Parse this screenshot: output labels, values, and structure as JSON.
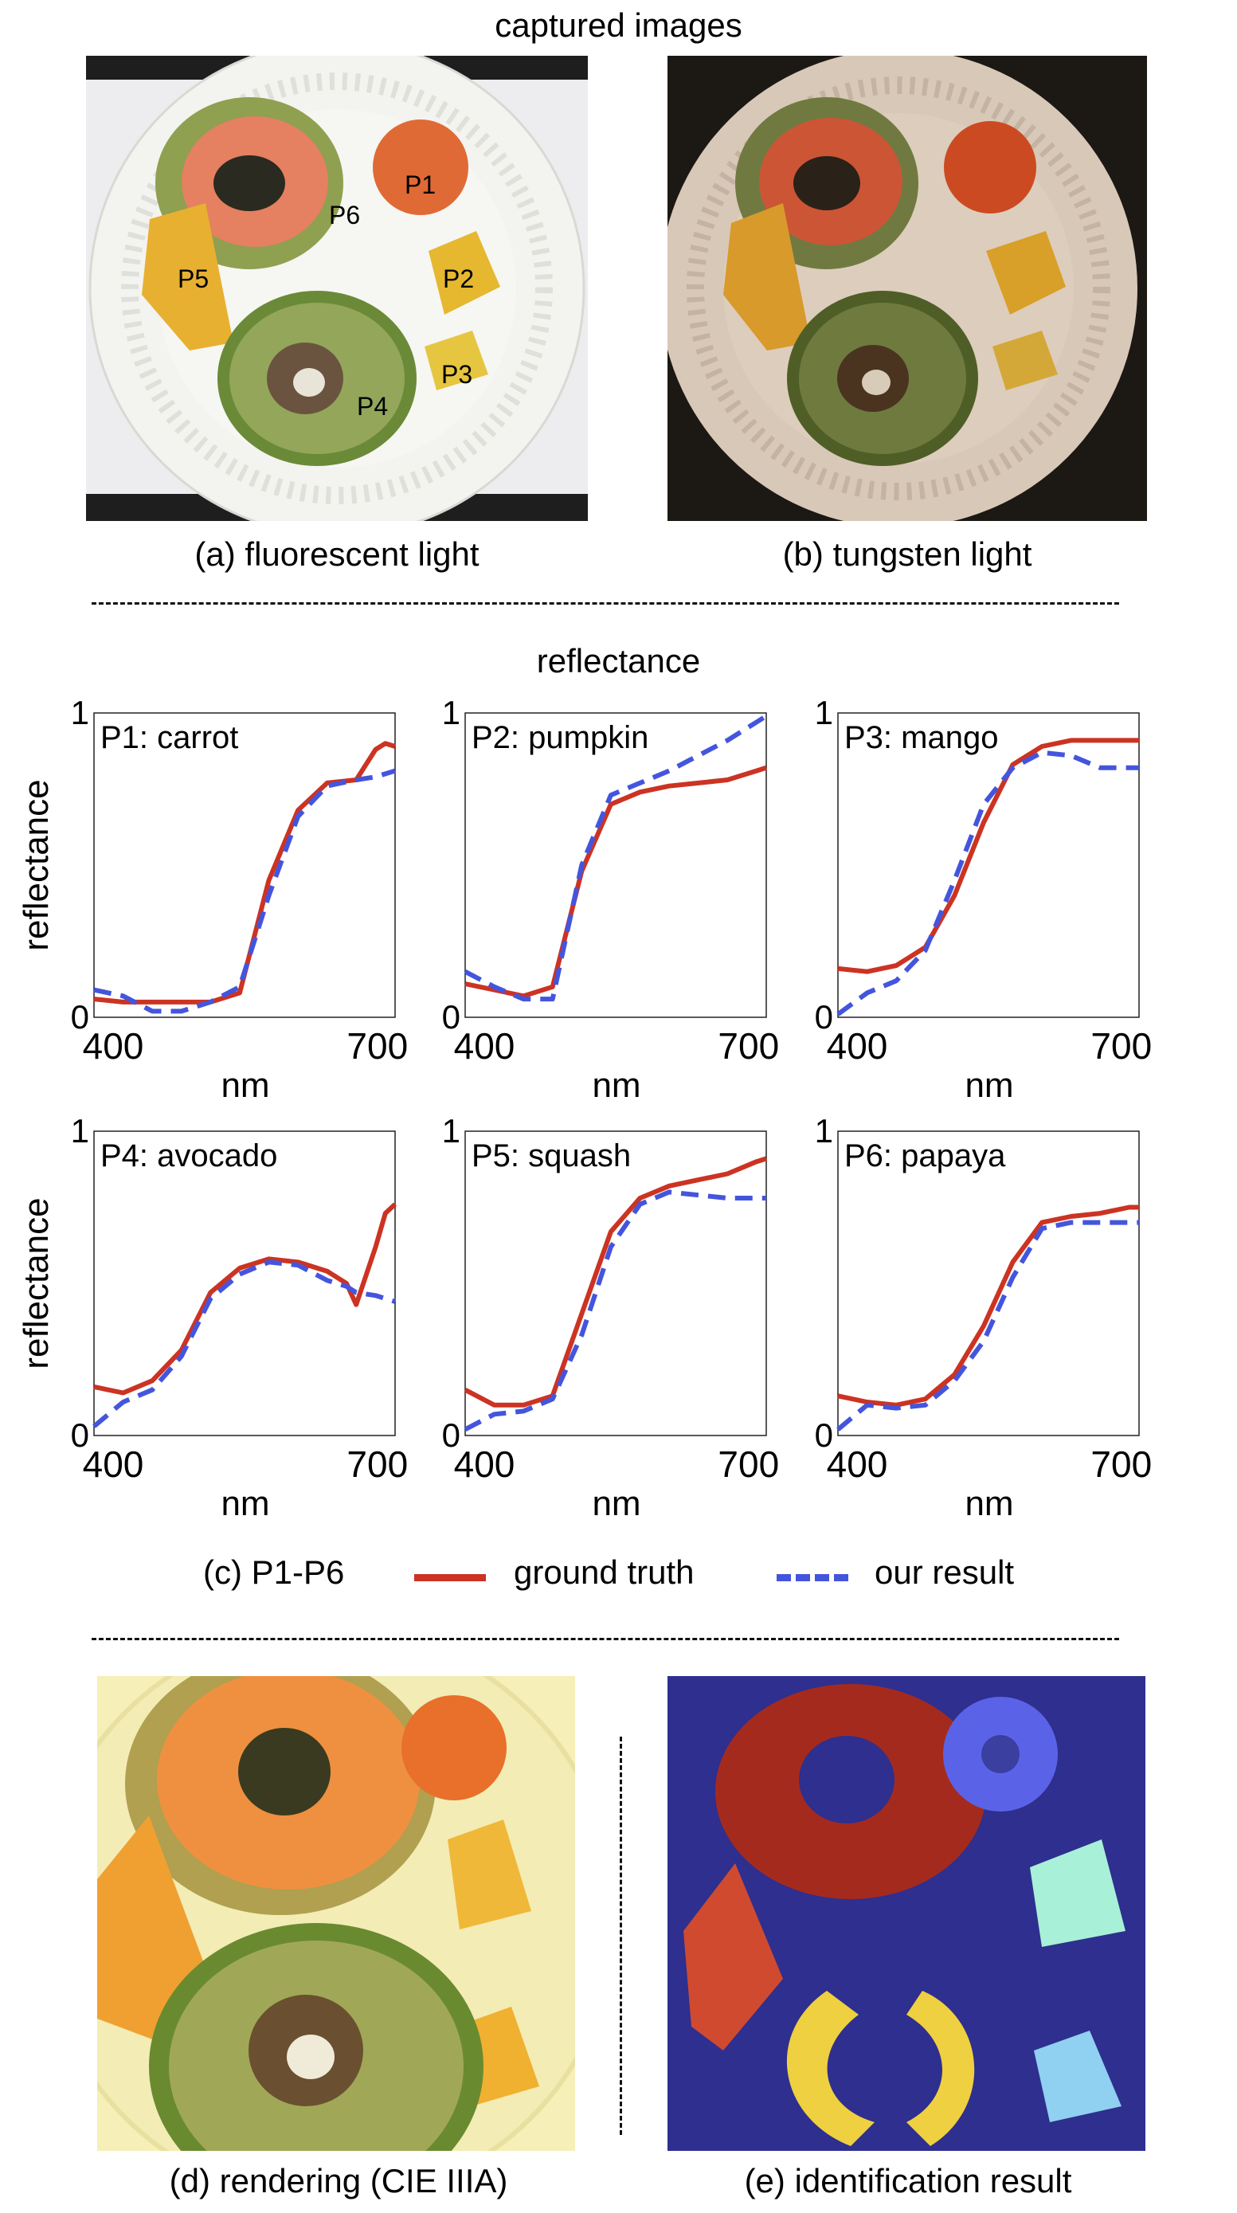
{
  "section_top": {
    "title": "captured images"
  },
  "photo_a": {
    "caption": "(a) fluorescent light",
    "labels": [
      "P1",
      "P2",
      "P3",
      "P4",
      "P5",
      "P6"
    ]
  },
  "photo_b": {
    "caption": "(b) tungsten light"
  },
  "section_mid": {
    "title": "reflectance"
  },
  "legend": {
    "prefix": "(c) P1-P6",
    "ground_truth": "ground truth",
    "our_result": "our result",
    "gt_color": "#cc3322",
    "ours_color": "#4455dd"
  },
  "photo_d": {
    "caption": "(d) rendering (CIE IIIA)"
  },
  "photo_e": {
    "caption": "(e) identification result"
  },
  "chart_data": [
    {
      "type": "line",
      "title": "P1: carrot",
      "xlabel": "nm",
      "ylabel": "reflectance",
      "xlim": [
        400,
        710
      ],
      "ylim": [
        0,
        1
      ],
      "xticks": [
        "400",
        "700"
      ],
      "yticks": [
        "0",
        "1"
      ],
      "x": [
        400,
        430,
        460,
        490,
        520,
        550,
        580,
        610,
        640,
        670,
        690,
        700,
        710
      ],
      "series": [
        {
          "name": "ground truth",
          "values": [
            0.06,
            0.05,
            0.05,
            0.05,
            0.05,
            0.08,
            0.45,
            0.68,
            0.77,
            0.78,
            0.88,
            0.9,
            0.89
          ]
        },
        {
          "name": "our result",
          "values": [
            0.09,
            0.07,
            0.02,
            0.02,
            0.05,
            0.1,
            0.4,
            0.66,
            0.76,
            0.78,
            0.79,
            0.8,
            0.81
          ]
        }
      ]
    },
    {
      "type": "line",
      "title": "P2: pumpkin",
      "xlabel": "nm",
      "ylabel": "",
      "xlim": [
        400,
        710
      ],
      "ylim": [
        0,
        1
      ],
      "xticks": [
        "400",
        "700"
      ],
      "yticks": [
        "0",
        "1"
      ],
      "x": [
        400,
        430,
        460,
        490,
        520,
        550,
        580,
        610,
        640,
        670,
        700,
        710
      ],
      "series": [
        {
          "name": "ground truth",
          "values": [
            0.11,
            0.09,
            0.07,
            0.1,
            0.48,
            0.7,
            0.74,
            0.76,
            0.77,
            0.78,
            0.81,
            0.82
          ]
        },
        {
          "name": "our result",
          "values": [
            0.15,
            0.1,
            0.06,
            0.06,
            0.5,
            0.73,
            0.77,
            0.81,
            0.86,
            0.91,
            0.97,
            0.99
          ]
        }
      ]
    },
    {
      "type": "line",
      "title": "P3: mango",
      "xlabel": "nm",
      "ylabel": "",
      "xlim": [
        400,
        710
      ],
      "ylim": [
        0,
        1
      ],
      "xticks": [
        "400",
        "700"
      ],
      "yticks": [
        "0",
        "1"
      ],
      "x": [
        400,
        430,
        460,
        490,
        520,
        550,
        580,
        610,
        640,
        670,
        700,
        710
      ],
      "series": [
        {
          "name": "ground truth",
          "values": [
            0.16,
            0.15,
            0.17,
            0.23,
            0.4,
            0.64,
            0.83,
            0.89,
            0.91,
            0.91,
            0.91,
            0.91
          ]
        },
        {
          "name": "our result",
          "values": [
            0.01,
            0.08,
            0.12,
            0.22,
            0.45,
            0.7,
            0.82,
            0.87,
            0.86,
            0.82,
            0.82,
            0.82
          ]
        }
      ]
    },
    {
      "type": "line",
      "title": "P4: avocado",
      "xlabel": "nm",
      "ylabel": "reflectance",
      "xlim": [
        400,
        710
      ],
      "ylim": [
        0,
        1
      ],
      "xticks": [
        "400",
        "700"
      ],
      "yticks": [
        "0",
        "1"
      ],
      "x": [
        400,
        430,
        460,
        490,
        520,
        550,
        580,
        610,
        640,
        660,
        670,
        690,
        700,
        710
      ],
      "series": [
        {
          "name": "ground truth",
          "values": [
            0.16,
            0.14,
            0.18,
            0.28,
            0.47,
            0.55,
            0.58,
            0.57,
            0.54,
            0.5,
            0.43,
            0.62,
            0.73,
            0.76
          ]
        },
        {
          "name": "our result",
          "values": [
            0.03,
            0.11,
            0.15,
            0.26,
            0.45,
            0.53,
            0.57,
            0.56,
            0.51,
            0.49,
            0.47,
            0.46,
            0.45,
            0.44
          ]
        }
      ]
    },
    {
      "type": "line",
      "title": "P5: squash",
      "xlabel": "nm",
      "ylabel": "",
      "xlim": [
        400,
        710
      ],
      "ylim": [
        0,
        1
      ],
      "xticks": [
        "400",
        "700"
      ],
      "yticks": [
        "0",
        "1"
      ],
      "x": [
        400,
        430,
        460,
        490,
        520,
        550,
        580,
        610,
        640,
        670,
        700,
        710
      ],
      "series": [
        {
          "name": "ground truth",
          "values": [
            0.15,
            0.1,
            0.1,
            0.13,
            0.4,
            0.67,
            0.78,
            0.82,
            0.84,
            0.86,
            0.9,
            0.91
          ]
        },
        {
          "name": "our result",
          "values": [
            0.02,
            0.07,
            0.08,
            0.12,
            0.33,
            0.62,
            0.76,
            0.8,
            0.79,
            0.78,
            0.78,
            0.78
          ]
        }
      ]
    },
    {
      "type": "line",
      "title": "P6: papaya",
      "xlabel": "nm",
      "ylabel": "",
      "xlim": [
        400,
        710
      ],
      "ylim": [
        0,
        1
      ],
      "xticks": [
        "400",
        "700"
      ],
      "yticks": [
        "0",
        "1"
      ],
      "x": [
        400,
        430,
        460,
        490,
        520,
        550,
        580,
        610,
        640,
        670,
        700,
        710
      ],
      "series": [
        {
          "name": "ground truth",
          "values": [
            0.13,
            0.11,
            0.1,
            0.12,
            0.2,
            0.36,
            0.57,
            0.7,
            0.72,
            0.73,
            0.75,
            0.75
          ]
        },
        {
          "name": "our result",
          "values": [
            0.02,
            0.1,
            0.09,
            0.1,
            0.18,
            0.31,
            0.52,
            0.68,
            0.7,
            0.7,
            0.7,
            0.7
          ]
        }
      ]
    }
  ]
}
